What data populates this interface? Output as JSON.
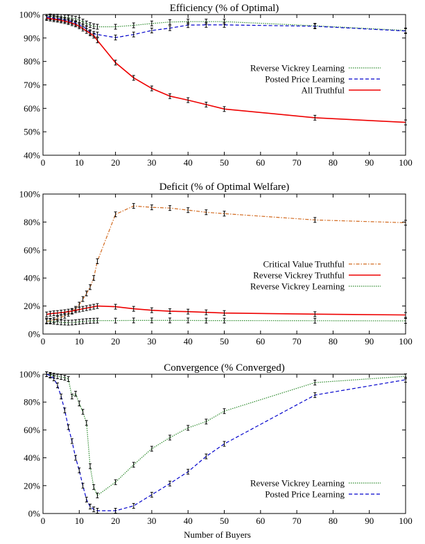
{
  "chart_data": [
    {
      "type": "line",
      "title": "Efficiency (% of Optimal)",
      "xlabel": "",
      "ylabel": "",
      "xlim": [
        0,
        100
      ],
      "ylim": [
        40,
        100
      ],
      "xticks": [
        "0",
        "10",
        "20",
        "30",
        "40",
        "50",
        "60",
        "70",
        "80",
        "90",
        "100"
      ],
      "yticks": [
        "40%",
        "50%",
        "60%",
        "70%",
        "80%",
        "90%",
        "100%"
      ],
      "grid": false,
      "legend_position": "right",
      "series": [
        {
          "name": "Reverse Vickrey Learning",
          "color": "#2e8b2e",
          "style": "dotted",
          "points": [
            [
              1,
              99
            ],
            [
              2,
              99.2
            ],
            [
              3,
              99.1
            ],
            [
              4,
              99.1
            ],
            [
              5,
              99
            ],
            [
              6,
              98.8
            ],
            [
              7,
              98.7
            ],
            [
              8,
              98.4
            ],
            [
              9,
              98.2
            ],
            [
              10,
              97.6
            ],
            [
              11,
              97
            ],
            [
              12,
              96.2
            ],
            [
              13,
              95.5
            ],
            [
              14,
              95
            ],
            [
              15,
              94.8
            ],
            [
              20,
              94.8
            ],
            [
              25,
              95.4
            ],
            [
              30,
              96.2
            ],
            [
              35,
              96.8
            ],
            [
              40,
              97
            ],
            [
              45,
              97
            ],
            [
              50,
              97
            ],
            [
              75,
              95.2
            ],
            [
              100,
              93.2
            ]
          ]
        },
        {
          "name": "Posted Price Learning",
          "color": "#0000cc",
          "style": "dashed",
          "points": [
            [
              1,
              99
            ],
            [
              2,
              98.8
            ],
            [
              3,
              98.5
            ],
            [
              4,
              98.3
            ],
            [
              5,
              98
            ],
            [
              6,
              97.7
            ],
            [
              7,
              97.3
            ],
            [
              8,
              96.9
            ],
            [
              9,
              96.3
            ],
            [
              10,
              95.6
            ],
            [
              11,
              94.8
            ],
            [
              12,
              94
            ],
            [
              13,
              92.5
            ],
            [
              14,
              91.8
            ],
            [
              15,
              91.5
            ],
            [
              20,
              90.2
            ],
            [
              25,
              91.5
            ],
            [
              30,
              93.2
            ],
            [
              35,
              94.2
            ],
            [
              40,
              95.5
            ],
            [
              45,
              95.6
            ],
            [
              50,
              95.6
            ],
            [
              75,
              95
            ],
            [
              100,
              93
            ]
          ]
        },
        {
          "name": "All Truthful",
          "color": "#ee0000",
          "style": "solid",
          "points": [
            [
              1,
              98.5
            ],
            [
              2,
              98.3
            ],
            [
              3,
              98
            ],
            [
              4,
              97.8
            ],
            [
              5,
              97.5
            ],
            [
              6,
              97.2
            ],
            [
              7,
              96.8
            ],
            [
              8,
              96.3
            ],
            [
              9,
              95.8
            ],
            [
              10,
              95
            ],
            [
              11,
              94
            ],
            [
              12,
              93
            ],
            [
              13,
              92
            ],
            [
              14,
              91
            ],
            [
              15,
              89
            ],
            [
              20,
              79.5
            ],
            [
              25,
              73
            ],
            [
              30,
              68.5
            ],
            [
              35,
              65.2
            ],
            [
              40,
              63.5
            ],
            [
              45,
              61.6
            ],
            [
              50,
              59.7
            ],
            [
              75,
              56
            ],
            [
              100,
              54
            ]
          ]
        }
      ]
    },
    {
      "type": "line",
      "title": "Deficit (% of Optimal Welfare)",
      "xlabel": "",
      "ylabel": "",
      "xlim": [
        0,
        100
      ],
      "ylim": [
        0,
        100
      ],
      "xticks": [
        "0",
        "10",
        "20",
        "30",
        "40",
        "50",
        "60",
        "70",
        "80",
        "90",
        "100"
      ],
      "yticks": [
        "0%",
        "20%",
        "40%",
        "60%",
        "80%",
        "100%"
      ],
      "grid": false,
      "legend_position": "right",
      "series": [
        {
          "name": "Critical Value Truthful",
          "color": "#d2691e",
          "style": "dash-dot",
          "points": [
            [
              1,
              9
            ],
            [
              2,
              9.5
            ],
            [
              3,
              10
            ],
            [
              4,
              11
            ],
            [
              5,
              12
            ],
            [
              6,
              13
            ],
            [
              7,
              14.5
            ],
            [
              8,
              16
            ],
            [
              9,
              18
            ],
            [
              10,
              21
            ],
            [
              11,
              25
            ],
            [
              12,
              29
            ],
            [
              13,
              33.5
            ],
            [
              14,
              40
            ],
            [
              15,
              52
            ],
            [
              20,
              85.5
            ],
            [
              25,
              91.5
            ],
            [
              30,
              90.5
            ],
            [
              35,
              90
            ],
            [
              40,
              88.5
            ],
            [
              45,
              87
            ],
            [
              50,
              86
            ],
            [
              75,
              81.5
            ],
            [
              100,
              79.5
            ]
          ]
        },
        {
          "name": "Reverse Vickrey Truthful",
          "color": "#ee0000",
          "style": "solid",
          "points": [
            [
              1,
              14
            ],
            [
              2,
              14.5
            ],
            [
              3,
              14.8
            ],
            [
              4,
              15
            ],
            [
              5,
              15.3
            ],
            [
              6,
              15.6
            ],
            [
              7,
              16
            ],
            [
              8,
              16.5
            ],
            [
              9,
              17
            ],
            [
              10,
              17.5
            ],
            [
              11,
              18
            ],
            [
              12,
              18.5
            ],
            [
              13,
              19
            ],
            [
              14,
              19.5
            ],
            [
              15,
              20
            ],
            [
              20,
              19.5
            ],
            [
              25,
              18
            ],
            [
              30,
              17
            ],
            [
              35,
              16.3
            ],
            [
              40,
              16
            ],
            [
              45,
              15.5
            ],
            [
              50,
              15
            ],
            [
              75,
              14.2
            ],
            [
              100,
              13.6
            ]
          ]
        },
        {
          "name": "Reverse Vickrey Learning",
          "color": "#2e8b2e",
          "style": "dotted",
          "points": [
            [
              1,
              9.5
            ],
            [
              2,
              9
            ],
            [
              3,
              8.8
            ],
            [
              4,
              8.5
            ],
            [
              5,
              8.3
            ],
            [
              6,
              8.2
            ],
            [
              7,
              8.1
            ],
            [
              8,
              8.2
            ],
            [
              9,
              8.4
            ],
            [
              10,
              8.7
            ],
            [
              11,
              9
            ],
            [
              12,
              9.2
            ],
            [
              13,
              9.4
            ],
            [
              14,
              9.5
            ],
            [
              15,
              9.6
            ],
            [
              20,
              9.6
            ],
            [
              25,
              9.7
            ],
            [
              30,
              9.7
            ],
            [
              35,
              9.7
            ],
            [
              40,
              9.7
            ],
            [
              45,
              9.6
            ],
            [
              50,
              9.6
            ],
            [
              75,
              9.5
            ],
            [
              100,
              9.4
            ]
          ]
        }
      ]
    },
    {
      "type": "line",
      "title": "Convergence (% Converged)",
      "xlabel": "Number of Buyers",
      "ylabel": "",
      "xlim": [
        0,
        100
      ],
      "ylim": [
        0,
        100
      ],
      "xticks": [
        "0",
        "10",
        "20",
        "30",
        "40",
        "50",
        "60",
        "70",
        "80",
        "90",
        "100"
      ],
      "yticks": [
        "0%",
        "20%",
        "40%",
        "60%",
        "80%",
        "100%"
      ],
      "grid": false,
      "legend_position": "bottom-right",
      "series": [
        {
          "name": "Reverse Vickrey Learning",
          "color": "#2e8b2e",
          "style": "dotted",
          "points": [
            [
              1,
              100
            ],
            [
              2,
              99.5
            ],
            [
              3,
              99
            ],
            [
              4,
              98.5
            ],
            [
              5,
              98
            ],
            [
              6,
              97.5
            ],
            [
              7,
              96.5
            ],
            [
              8,
              84
            ],
            [
              9,
              86
            ],
            [
              10,
              79
            ],
            [
              11,
              73
            ],
            [
              12,
              65
            ],
            [
              13,
              34
            ],
            [
              14,
              19
            ],
            [
              15,
              13
            ],
            [
              20,
              22.5
            ],
            [
              25,
              35
            ],
            [
              30,
              46.5
            ],
            [
              35,
              54.5
            ],
            [
              40,
              61.5
            ],
            [
              45,
              66
            ],
            [
              50,
              73.5
            ],
            [
              75,
              94
            ],
            [
              100,
              98.5
            ]
          ]
        },
        {
          "name": "Posted Price Learning",
          "color": "#0000cc",
          "style": "dashed",
          "points": [
            [
              1,
              100
            ],
            [
              2,
              99
            ],
            [
              3,
              97
            ],
            [
              4,
              92
            ],
            [
              5,
              84
            ],
            [
              6,
              74
            ],
            [
              7,
              62
            ],
            [
              8,
              52
            ],
            [
              9,
              40
            ],
            [
              10,
              31
            ],
            [
              11,
              20
            ],
            [
              12,
              10
            ],
            [
              13,
              5
            ],
            [
              14,
              3
            ],
            [
              15,
              2
            ],
            [
              20,
              2
            ],
            [
              25,
              5.5
            ],
            [
              30,
              13.5
            ],
            [
              35,
              21.5
            ],
            [
              40,
              30
            ],
            [
              45,
              41
            ],
            [
              50,
              50
            ],
            [
              75,
              85
            ],
            [
              100,
              96
            ]
          ]
        }
      ]
    }
  ]
}
